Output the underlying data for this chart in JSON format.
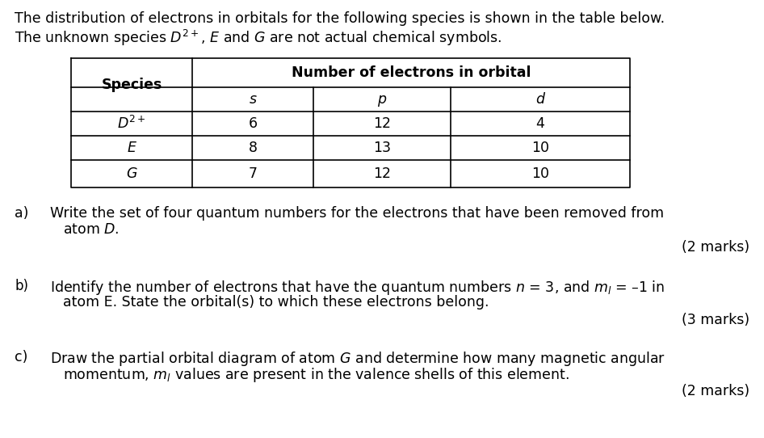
{
  "intro_line1": "The distribution of electrons in orbitals for the following species is shown in the table below.",
  "intro_line2": "The unknown species $D^{2+}$, $E$ and $G$ are not actual chemical symbols.",
  "table_header_main": "Number of electrons in orbital",
  "table_col_headers": [
    "Species",
    "s",
    "p",
    "d"
  ],
  "table_rows": [
    [
      "$D^{2+}$",
      "6",
      "12",
      "4"
    ],
    [
      "$E$",
      "8",
      "13",
      "10"
    ],
    [
      "$G$",
      "7",
      "12",
      "10"
    ]
  ],
  "qa_label": "a)",
  "qa_text_line1": "Write the set of four quantum numbers for the electrons that have been removed from",
  "qa_text_line2": "atom $D$.",
  "qa_marks": "(2 marks)",
  "qb_label": "b)",
  "qb_text_line1": "Identify the number of electrons that have the quantum numbers $n$ = 3, and $m_l$ = –1 in",
  "qb_text_line2": "atom E. State the orbital(s) to which these electrons belong.",
  "qb_marks": "(3 marks)",
  "qc_label": "c)",
  "qc_text_line1": "Draw the partial orbital diagram of atom $G$ and determine how many magnetic angular",
  "qc_text_line2": "momentum, $m_l$ values are present in the valence shells of this element.",
  "qc_marks": "(2 marks)",
  "background_color": "#ffffff",
  "text_color": "#000000",
  "font_size": 12.5
}
